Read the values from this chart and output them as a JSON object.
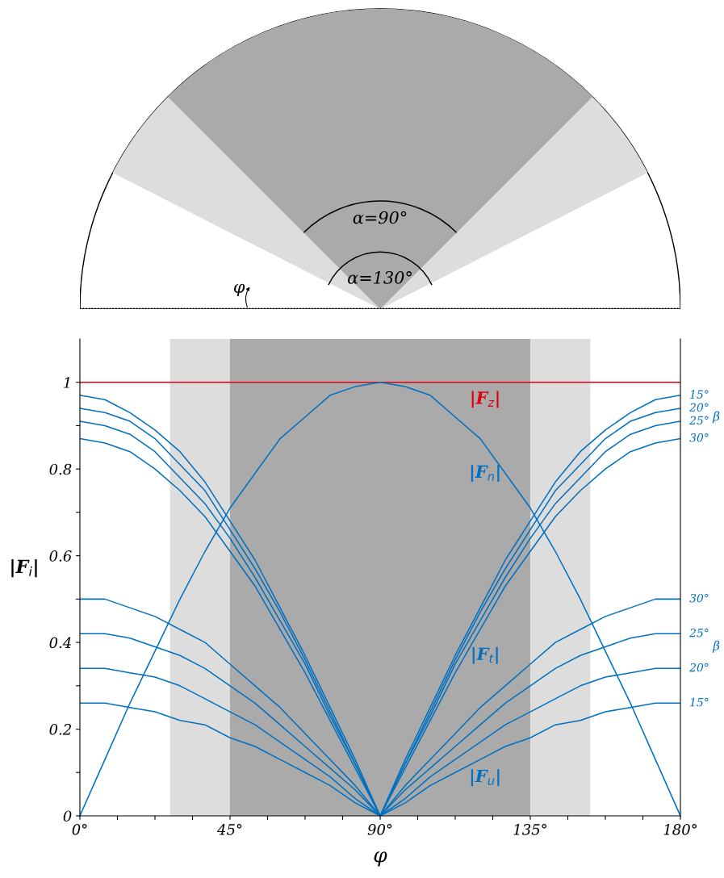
{
  "chart_data": {
    "type": "line",
    "xlabel": "φ",
    "ylabel": "|F$_{i}$|",
    "xlim": [
      0,
      180
    ],
    "ylim": [
      0,
      1.1
    ],
    "xticks": [
      {
        "value": 0,
        "label": "0°"
      },
      {
        "value": 11.25,
        "label": null
      },
      {
        "value": 22.5,
        "label": null
      },
      {
        "value": 33.75,
        "label": null
      },
      {
        "value": 45,
        "label": "45°"
      },
      {
        "value": 56.25,
        "label": null
      },
      {
        "value": 67.5,
        "label": null
      },
      {
        "value": 78.75,
        "label": null
      },
      {
        "value": 90,
        "label": "90°"
      },
      {
        "value": 101.25,
        "label": null
      },
      {
        "value": 112.5,
        "label": null
      },
      {
        "value": 123.75,
        "label": null
      },
      {
        "value": 135,
        "label": "135°"
      },
      {
        "value": 146.25,
        "label": null
      },
      {
        "value": 157.5,
        "label": null
      },
      {
        "value": 168.75,
        "label": null
      },
      {
        "value": 180,
        "label": "180°"
      }
    ],
    "yticks": [
      0,
      {
        "value": 0.1,
        "label": null
      },
      0.2,
      {
        "value": 0.3,
        "label": null
      },
      0.4,
      {
        "value": 0.5,
        "label": null
      },
      0.6,
      {
        "value": 0.7,
        "label": null
      },
      0.8,
      {
        "value": 0.9,
        "label": null
      },
      1
    ],
    "grid": false,
    "legend": false,
    "marker": "none",
    "line_style": "solid",
    "bands": [
      {
        "axis": "x",
        "from": 27,
        "to": 153,
        "color": "#dddddd"
      },
      {
        "axis": "x",
        "from": 45,
        "to": 135,
        "color": "#aaaaaa"
      }
    ],
    "x": [
      0,
      7.5,
      15,
      22.5,
      30,
      37.5,
      45,
      52.5,
      60,
      67.5,
      75,
      82.5,
      90,
      97.5,
      105,
      112.5,
      120,
      127.5,
      135,
      142.5,
      150,
      157.5,
      165,
      172.5,
      180
    ],
    "series": [
      {
        "color": "#e3000f",
        "x": [
          0,
          180
        ],
        "values": [
          1,
          1
        ]
      },
      {
        "color": "#0070c0",
        "values": [
          0,
          0.13,
          0.26,
          0.38,
          0.5,
          0.61,
          0.71,
          0.79,
          0.87,
          0.92,
          0.97,
          0.99,
          1,
          0.99,
          0.97,
          0.92,
          0.87,
          0.79,
          0.71,
          0.61,
          0.5,
          0.38,
          0.26,
          0.13,
          0
        ]
      },
      {
        "name": "15°",
        "color": "#0070c0",
        "values": [
          0.97,
          0.96,
          0.93,
          0.89,
          0.84,
          0.77,
          0.68,
          0.59,
          0.48,
          0.37,
          0.25,
          0.13,
          0,
          0.13,
          0.25,
          0.37,
          0.48,
          0.59,
          0.68,
          0.77,
          0.84,
          0.89,
          0.93,
          0.96,
          0.97
        ]
      },
      {
        "name": "20°",
        "color": "#0070c0",
        "values": [
          0.94,
          0.93,
          0.91,
          0.87,
          0.81,
          0.75,
          0.66,
          0.57,
          0.47,
          0.36,
          0.24,
          0.12,
          0,
          0.12,
          0.24,
          0.36,
          0.47,
          0.57,
          0.66,
          0.75,
          0.81,
          0.87,
          0.91,
          0.93,
          0.94
        ]
      },
      {
        "name": "25°",
        "color": "#0070c0",
        "values": [
          0.91,
          0.9,
          0.88,
          0.84,
          0.78,
          0.72,
          0.64,
          0.55,
          0.45,
          0.35,
          0.23,
          0.12,
          0,
          0.12,
          0.23,
          0.35,
          0.45,
          0.55,
          0.64,
          0.72,
          0.78,
          0.84,
          0.88,
          0.9,
          0.91
        ]
      },
      {
        "name": "30°",
        "color": "#0070c0",
        "values": [
          0.87,
          0.86,
          0.84,
          0.8,
          0.75,
          0.69,
          0.61,
          0.53,
          0.43,
          0.33,
          0.22,
          0.11,
          0,
          0.11,
          0.22,
          0.33,
          0.43,
          0.53,
          0.61,
          0.69,
          0.75,
          0.8,
          0.84,
          0.86,
          0.87
        ]
      },
      {
        "name": "30°",
        "color": "#0070c0",
        "values": [
          0.5,
          0.5,
          0.48,
          0.46,
          0.43,
          0.4,
          0.35,
          0.3,
          0.25,
          0.19,
          0.13,
          0.07,
          0,
          0.07,
          0.13,
          0.19,
          0.25,
          0.3,
          0.35,
          0.4,
          0.43,
          0.46,
          0.48,
          0.5,
          0.5
        ]
      },
      {
        "name": "25°",
        "color": "#0070c0",
        "values": [
          0.42,
          0.42,
          0.41,
          0.39,
          0.37,
          0.34,
          0.3,
          0.26,
          0.21,
          0.16,
          0.11,
          0.06,
          0,
          0.06,
          0.11,
          0.16,
          0.21,
          0.26,
          0.3,
          0.34,
          0.37,
          0.39,
          0.41,
          0.42,
          0.42
        ]
      },
      {
        "name": "20°",
        "color": "#0070c0",
        "values": [
          0.34,
          0.34,
          0.33,
          0.32,
          0.3,
          0.27,
          0.24,
          0.21,
          0.17,
          0.13,
          0.09,
          0.04,
          0,
          0.04,
          0.09,
          0.13,
          0.17,
          0.21,
          0.24,
          0.27,
          0.3,
          0.32,
          0.33,
          0.34,
          0.34
        ]
      },
      {
        "name": "15°",
        "color": "#0070c0",
        "values": [
          0.26,
          0.26,
          0.25,
          0.24,
          0.22,
          0.21,
          0.18,
          0.16,
          0.13,
          0.1,
          0.07,
          0.03,
          0,
          0.03,
          0.07,
          0.1,
          0.13,
          0.16,
          0.18,
          0.21,
          0.22,
          0.24,
          0.25,
          0.26,
          0.26
        ]
      }
    ],
    "annotations": [
      "α=90°",
      "α=130°",
      "φ",
      "|F$_{z}$|",
      "|F$_{n}$|",
      "|F$_{t}$|",
      "|F$_{u}$|",
      "β",
      "β"
    ]
  }
}
